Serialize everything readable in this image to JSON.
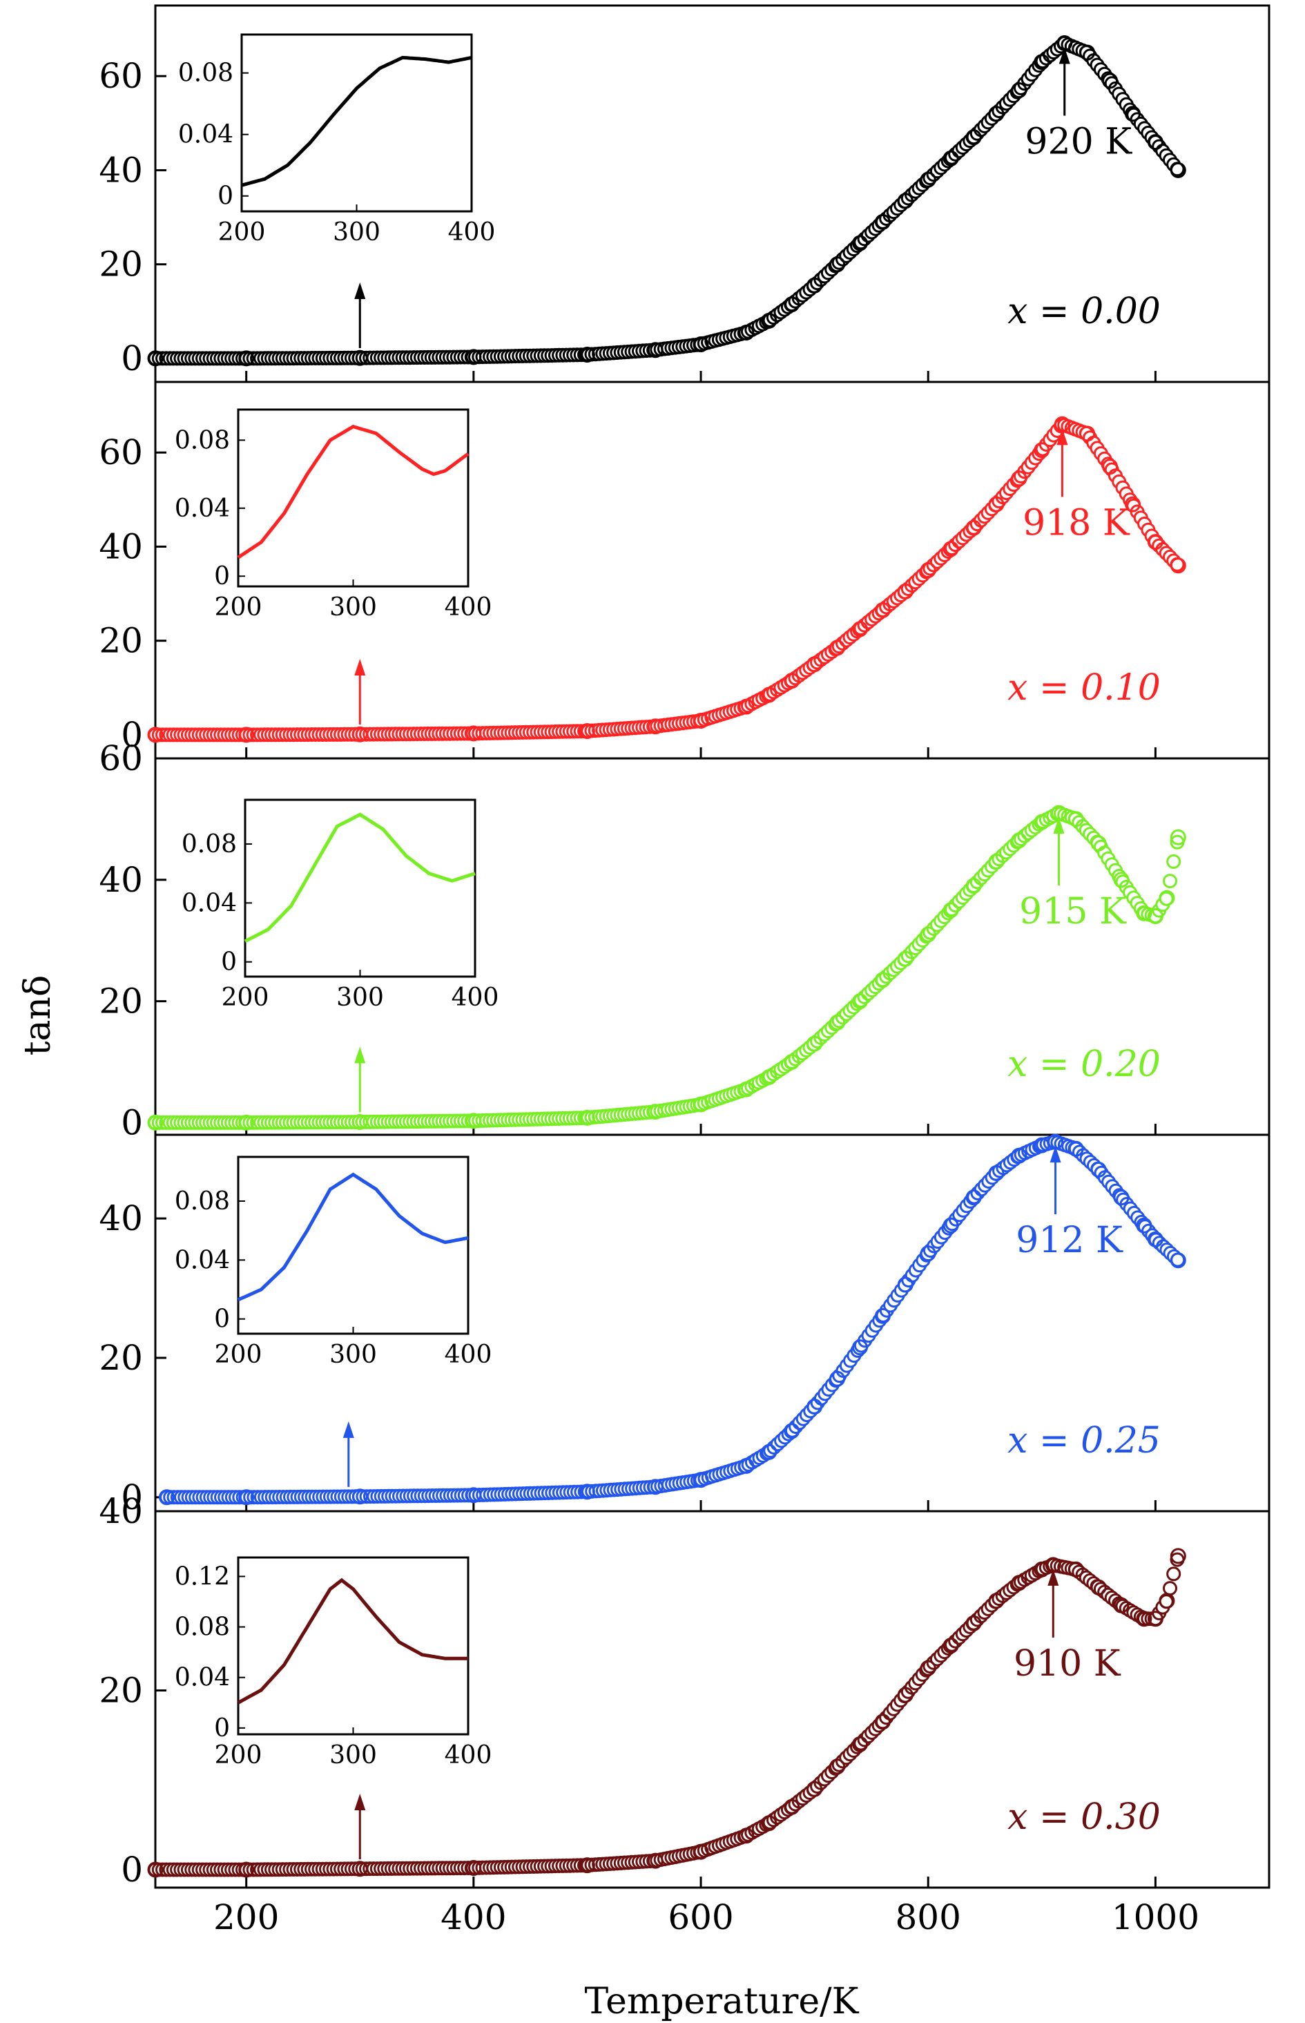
{
  "figure": {
    "ylabel": "tanδ",
    "xlabel": "Temperature/K",
    "x_ticks": [
      "200",
      "400",
      "600",
      "800",
      "1000"
    ]
  },
  "chart_data": [
    {
      "type": "scatter",
      "series_label": "x = 0.00",
      "color": "#000000",
      "ylim": [
        -5,
        75
      ],
      "y_ticks": [
        0,
        20,
        40,
        60
      ],
      "y_tick_labels": [
        "0",
        "20",
        "40",
        "60"
      ],
      "annotation": {
        "text": "920 K",
        "x": 920
      },
      "x": [
        120,
        200,
        300,
        400,
        500,
        560,
        600,
        640,
        660,
        680,
        700,
        720,
        740,
        760,
        780,
        800,
        820,
        840,
        860,
        880,
        900,
        920,
        940,
        960,
        980,
        1000,
        1020
      ],
      "y": [
        0,
        0,
        0.1,
        0.3,
        0.8,
        1.8,
        3,
        5.5,
        8,
        11.5,
        15.5,
        20,
        24.5,
        29,
        33.5,
        38,
        42.5,
        47,
        52,
        57,
        63,
        67,
        65,
        59,
        52,
        46,
        40
      ],
      "inset": {
        "xlim": [
          200,
          400
        ],
        "x_ticks": [
          "200",
          "300",
          "400"
        ],
        "ylim": [
          -0.01,
          0.105
        ],
        "y_ticks": [
          0,
          0.04,
          0.08
        ],
        "y_tick_labels": [
          "0",
          "0.04",
          "0.08"
        ],
        "x": [
          200,
          220,
          240,
          260,
          280,
          300,
          320,
          340,
          360,
          380,
          400
        ],
        "y": [
          0.007,
          0.011,
          0.02,
          0.035,
          0.053,
          0.07,
          0.083,
          0.09,
          0.089,
          0.087,
          0.09
        ]
      },
      "inset_arrow_x": 300
    },
    {
      "type": "scatter",
      "series_label": "x = 0.10",
      "color": "#ff2222",
      "ylim": [
        -5,
        75
      ],
      "y_ticks": [
        0,
        20,
        40,
        60
      ],
      "y_tick_labels": [
        "0",
        "20",
        "40",
        "60"
      ],
      "annotation": {
        "text": "918 K",
        "x": 918
      },
      "x": [
        120,
        200,
        300,
        400,
        500,
        560,
        600,
        640,
        660,
        680,
        700,
        720,
        740,
        760,
        780,
        800,
        820,
        840,
        860,
        880,
        900,
        918,
        940,
        960,
        980,
        1000,
        1020
      ],
      "y": [
        0,
        0,
        0.1,
        0.3,
        0.8,
        1.8,
        3,
        6,
        8.5,
        11.5,
        15,
        18.5,
        22.5,
        26.5,
        30.5,
        35,
        39.5,
        44,
        49,
        54.5,
        60.5,
        66,
        64,
        57,
        49,
        41,
        36
      ],
      "inset": {
        "xlim": [
          200,
          400
        ],
        "x_ticks": [
          "200",
          "300",
          "400"
        ],
        "ylim": [
          -0.006,
          0.098
        ],
        "y_ticks": [
          0,
          0.04,
          0.08
        ],
        "y_tick_labels": [
          "0",
          "0.04",
          "0.08"
        ],
        "x": [
          200,
          220,
          240,
          260,
          280,
          300,
          320,
          340,
          360,
          370,
          380,
          400
        ],
        "y": [
          0.011,
          0.02,
          0.037,
          0.06,
          0.08,
          0.088,
          0.084,
          0.073,
          0.063,
          0.06,
          0.062,
          0.072
        ]
      },
      "inset_arrow_x": 300
    },
    {
      "type": "scatter",
      "series_label": "x = 0.20",
      "color": "#77ee22",
      "ylim": [
        -2,
        60
      ],
      "y_ticks": [
        0,
        20,
        40,
        60
      ],
      "y_tick_labels": [
        "0",
        "20",
        "40",
        "60"
      ],
      "annotation": {
        "text": "915 K",
        "x": 915
      },
      "x": [
        120,
        200,
        300,
        400,
        500,
        560,
        600,
        640,
        660,
        680,
        700,
        720,
        740,
        760,
        780,
        800,
        820,
        840,
        860,
        880,
        900,
        915,
        930,
        950,
        970,
        990,
        1000,
        1010,
        1020
      ],
      "y": [
        0,
        0,
        0.1,
        0.3,
        0.8,
        1.8,
        3,
        5.5,
        7.5,
        10,
        13,
        16.5,
        20,
        23.5,
        27,
        31,
        35,
        39,
        43,
        46.5,
        49.5,
        51,
        50,
        46,
        40,
        34.5,
        34,
        37,
        47
      ],
      "inset": {
        "xlim": [
          200,
          400
        ],
        "x_ticks": [
          "200",
          "300",
          "400"
        ],
        "ylim": [
          -0.01,
          0.11
        ],
        "y_ticks": [
          0,
          0.04,
          0.08
        ],
        "y_tick_labels": [
          "0",
          "0.04",
          "0.08"
        ],
        "x": [
          200,
          220,
          240,
          260,
          280,
          300,
          320,
          340,
          360,
          380,
          400
        ],
        "y": [
          0.014,
          0.022,
          0.038,
          0.065,
          0.092,
          0.1,
          0.09,
          0.072,
          0.06,
          0.055,
          0.06
        ]
      },
      "inset_arrow_x": 300
    },
    {
      "type": "scatter",
      "series_label": "x = 0.25",
      "color": "#2255ee",
      "ylim": [
        -2,
        52
      ],
      "y_ticks": [
        0,
        20,
        40
      ],
      "y_tick_labels": [
        "0",
        "20",
        "40"
      ],
      "annotation": {
        "text": "912 K",
        "x": 912
      },
      "x": [
        130,
        200,
        300,
        400,
        500,
        560,
        600,
        640,
        660,
        680,
        700,
        720,
        740,
        760,
        780,
        800,
        820,
        840,
        860,
        880,
        900,
        912,
        930,
        950,
        970,
        990,
        1000,
        1020
      ],
      "y": [
        0,
        0,
        0.1,
        0.3,
        0.8,
        1.5,
        2.5,
        4.5,
        6.5,
        9.5,
        13,
        17,
        21.5,
        26,
        30.5,
        35,
        39,
        43,
        46.5,
        49,
        50.5,
        51,
        50,
        47,
        43,
        39,
        37,
        34
      ],
      "inset": {
        "xlim": [
          200,
          400
        ],
        "x_ticks": [
          "200",
          "300",
          "400"
        ],
        "ylim": [
          -0.01,
          0.11
        ],
        "y_ticks": [
          0,
          0.04,
          0.08
        ],
        "y_tick_labels": [
          "0",
          "0.04",
          "0.08"
        ],
        "x": [
          200,
          220,
          240,
          260,
          280,
          300,
          320,
          340,
          360,
          380,
          400
        ],
        "y": [
          0.013,
          0.02,
          0.035,
          0.06,
          0.088,
          0.098,
          0.088,
          0.07,
          0.058,
          0.052,
          0.055
        ]
      },
      "inset_arrow_x": 290
    },
    {
      "type": "scatter",
      "series_label": "x = 0.30",
      "color": "#6b0f0f",
      "ylim": [
        -2,
        40
      ],
      "y_ticks": [
        0,
        20,
        40
      ],
      "y_tick_labels": [
        "0",
        "20",
        "40"
      ],
      "annotation": {
        "text": "910 K",
        "x": 910
      },
      "x": [
        120,
        200,
        300,
        400,
        500,
        560,
        600,
        640,
        660,
        680,
        700,
        720,
        740,
        760,
        780,
        800,
        820,
        840,
        860,
        880,
        900,
        910,
        930,
        950,
        970,
        990,
        1000,
        1010,
        1020
      ],
      "y": [
        0,
        0,
        0.1,
        0.2,
        0.5,
        1,
        2,
        3.8,
        5.2,
        7,
        9,
        11.5,
        14,
        16.5,
        19.5,
        22.5,
        25,
        27.5,
        30,
        32,
        33.5,
        34,
        33.5,
        31.5,
        29.5,
        28,
        28,
        30,
        35
      ],
      "inset": {
        "xlim": [
          200,
          400
        ],
        "x_ticks": [
          "200",
          "300",
          "400"
        ],
        "ylim": [
          -0.005,
          0.135
        ],
        "y_ticks": [
          0,
          0.04,
          0.08,
          0.12
        ],
        "y_tick_labels": [
          "0",
          "0.04",
          "0.08",
          "0.12"
        ],
        "x": [
          200,
          220,
          240,
          260,
          280,
          290,
          300,
          320,
          340,
          360,
          380,
          400
        ],
        "y": [
          0.02,
          0.03,
          0.05,
          0.08,
          0.11,
          0.117,
          0.11,
          0.088,
          0.068,
          0.058,
          0.055,
          0.055
        ]
      },
      "inset_arrow_x": 300
    }
  ]
}
